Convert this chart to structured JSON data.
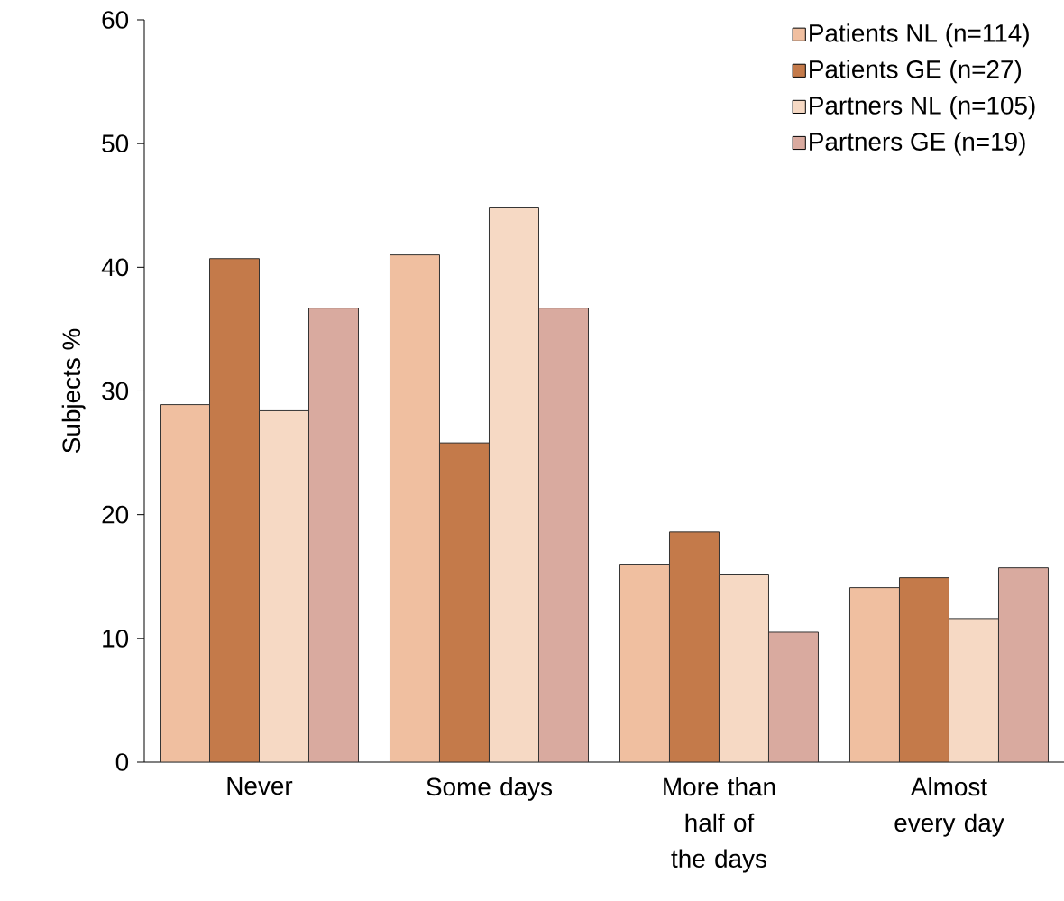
{
  "chart_data": {
    "type": "bar",
    "ylabel": "Subjects %",
    "categories": [
      "Never",
      "Some days",
      "More than half of the days",
      "Almost every day"
    ],
    "series": [
      {
        "name": "Patients NL (n=114)",
        "color": "#f0bfa0",
        "values": [
          28.9,
          41.0,
          16.0,
          14.1
        ]
      },
      {
        "name": "Patients GE (n=27)",
        "color": "#c47a4a",
        "values": [
          40.7,
          25.8,
          18.6,
          14.9
        ]
      },
      {
        "name": "Partners NL (n=105)",
        "color": "#f6d9c4",
        "values": [
          28.4,
          44.8,
          15.2,
          11.6
        ]
      },
      {
        "name": "Partners GE (n=19)",
        "color": "#d9aa9f",
        "values": [
          36.7,
          36.7,
          10.5,
          15.7
        ]
      }
    ],
    "ylim": [
      0,
      60
    ],
    "yticks": [
      0,
      10,
      20,
      30,
      40,
      50,
      60
    ],
    "grid": false,
    "legend": "top right"
  }
}
